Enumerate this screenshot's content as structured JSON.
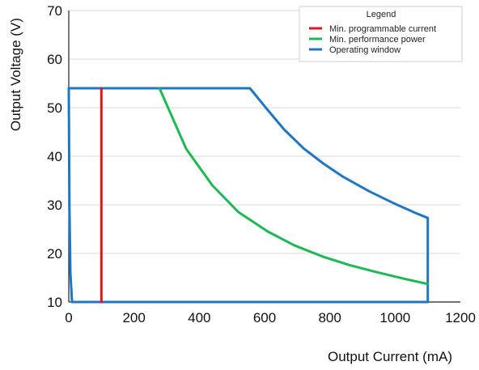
{
  "chart_data": {
    "type": "line",
    "xlabel": "Output Current (mA)",
    "ylabel": "Output Voltage (V)",
    "xlim": [
      0,
      1200
    ],
    "ylim": [
      10,
      70
    ],
    "xticks": [
      0,
      200,
      400,
      600,
      800,
      1000,
      1200
    ],
    "yticks": [
      10,
      20,
      30,
      40,
      50,
      60,
      70
    ],
    "grid": "horizontal",
    "legend": {
      "title": "Legend",
      "placement": "top-right"
    },
    "series": [
      {
        "name": "Min. programmable current",
        "color": "#e0161b",
        "points": [
          [
            100,
            10
          ],
          [
            100,
            54
          ]
        ]
      },
      {
        "name": "Min. performance power",
        "color": "#1db954",
        "points": [
          [
            278,
            54
          ],
          [
            360,
            41.5
          ],
          [
            440,
            34
          ],
          [
            520,
            28.5
          ],
          [
            610,
            24.5
          ],
          [
            690,
            21.7
          ],
          [
            780,
            19.3
          ],
          [
            860,
            17.6
          ],
          [
            940,
            16.2
          ],
          [
            1020,
            14.9
          ],
          [
            1100,
            13.7
          ]
        ]
      },
      {
        "name": "Operating window",
        "color": "#1f77c4",
        "points": [
          [
            10,
            10
          ],
          [
            5,
            16
          ],
          [
            2,
            30
          ],
          [
            0,
            54
          ],
          [
            555,
            54
          ],
          [
            610,
            49.5
          ],
          [
            660,
            45.5
          ],
          [
            720,
            41.6
          ],
          [
            780,
            38.5
          ],
          [
            840,
            35.8
          ],
          [
            920,
            32.8
          ],
          [
            1000,
            30.2
          ],
          [
            1060,
            28.4
          ],
          [
            1100,
            27.3
          ],
          [
            1100,
            10
          ],
          [
            10,
            10
          ]
        ]
      }
    ]
  }
}
